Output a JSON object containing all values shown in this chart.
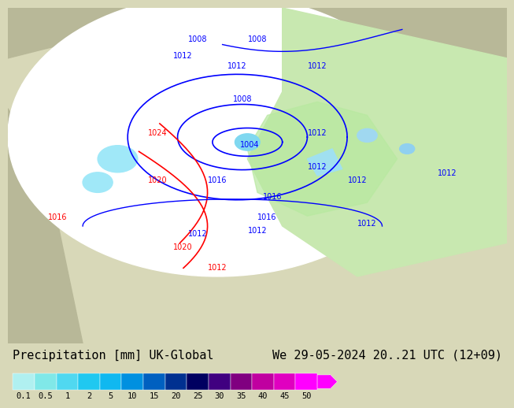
{
  "title_left": "Precipitation [mm] UK-Global",
  "title_right": "We 29-05-2024 20..21 UTC (12+09)",
  "colorbar_labels": [
    "0.1",
    "0.5",
    "1",
    "2",
    "5",
    "10",
    "15",
    "20",
    "25",
    "30",
    "35",
    "40",
    "45",
    "50"
  ],
  "colorbar_colors": [
    "#b0f0f0",
    "#80e8e8",
    "#50d8f0",
    "#20c8f0",
    "#10b8f0",
    "#0090e0",
    "#0060c0",
    "#003090",
    "#000060",
    "#400080",
    "#800080",
    "#c000a0",
    "#e000c0",
    "#ff00ff"
  ],
  "bg_color": "#c8c8a0",
  "map_bg": "#c8c8a0",
  "font_size_title": 11,
  "font_size_label": 9,
  "colorbar_arrow_color": "#e000d0"
}
